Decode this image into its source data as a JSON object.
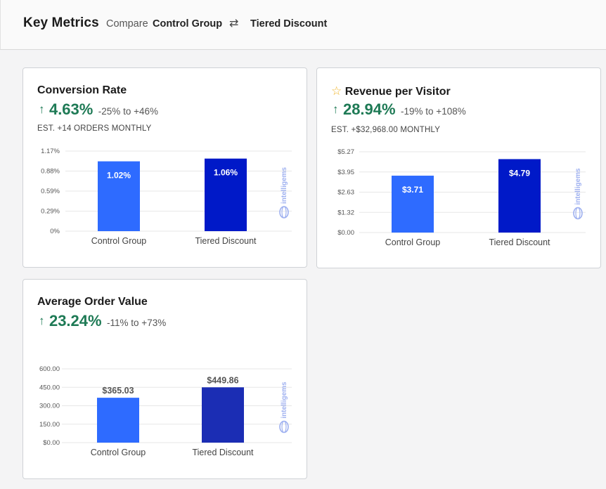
{
  "header": {
    "title": "Key Metrics",
    "compare_label": "Compare",
    "group_a": "Control Group",
    "swap_icon": "⇄",
    "group_b": "Tiered Discount"
  },
  "watermark": "intelligems",
  "colors": {
    "positive": "#1e7a55",
    "bar_a": "#2e6bff",
    "bar_b": "#0019c8",
    "bar_b_alt": "#1b2db4"
  },
  "cards": {
    "conversion": {
      "title": "Conversion Rate",
      "lift": "4.63%",
      "range": "-25% to +46%",
      "est": "EST. +14 ORDERS MONTHLY"
    },
    "rpv": {
      "title": "Revenue per Visitor",
      "lift": "28.94%",
      "range": "-19% to +108%",
      "est": "EST. +$32,968.00 MONTHLY"
    },
    "aov": {
      "title": "Average Order Value",
      "lift": "23.24%",
      "range": "-11% to +73%"
    }
  },
  "chart_data": [
    {
      "type": "bar",
      "title": "Conversion Rate",
      "categories": [
        "Control Group",
        "Tiered Discount"
      ],
      "values": [
        1.02,
        1.06
      ],
      "value_labels": [
        "1.02%",
        "1.06%"
      ],
      "yticks": [
        "0%",
        "0.29%",
        "0.59%",
        "0.88%",
        "1.17%"
      ],
      "ylim": [
        0,
        1.17
      ]
    },
    {
      "type": "bar",
      "title": "Revenue per Visitor",
      "categories": [
        "Control Group",
        "Tiered Discount"
      ],
      "values": [
        3.71,
        4.79
      ],
      "value_labels": [
        "$3.71",
        "$4.79"
      ],
      "yticks": [
        "$0.00",
        "$1.32",
        "$2.63",
        "$3.95",
        "$5.27"
      ],
      "ylim": [
        0,
        5.27
      ]
    },
    {
      "type": "bar",
      "title": "Average Order Value",
      "categories": [
        "Control Group",
        "Tiered Discount"
      ],
      "values": [
        365.03,
        449.86
      ],
      "value_labels": [
        "$365.03",
        "$449.86"
      ],
      "yticks": [
        "$0.00",
        "150.00",
        "300.00",
        "450.00",
        "600.00"
      ],
      "ylim": [
        0,
        600
      ]
    }
  ]
}
